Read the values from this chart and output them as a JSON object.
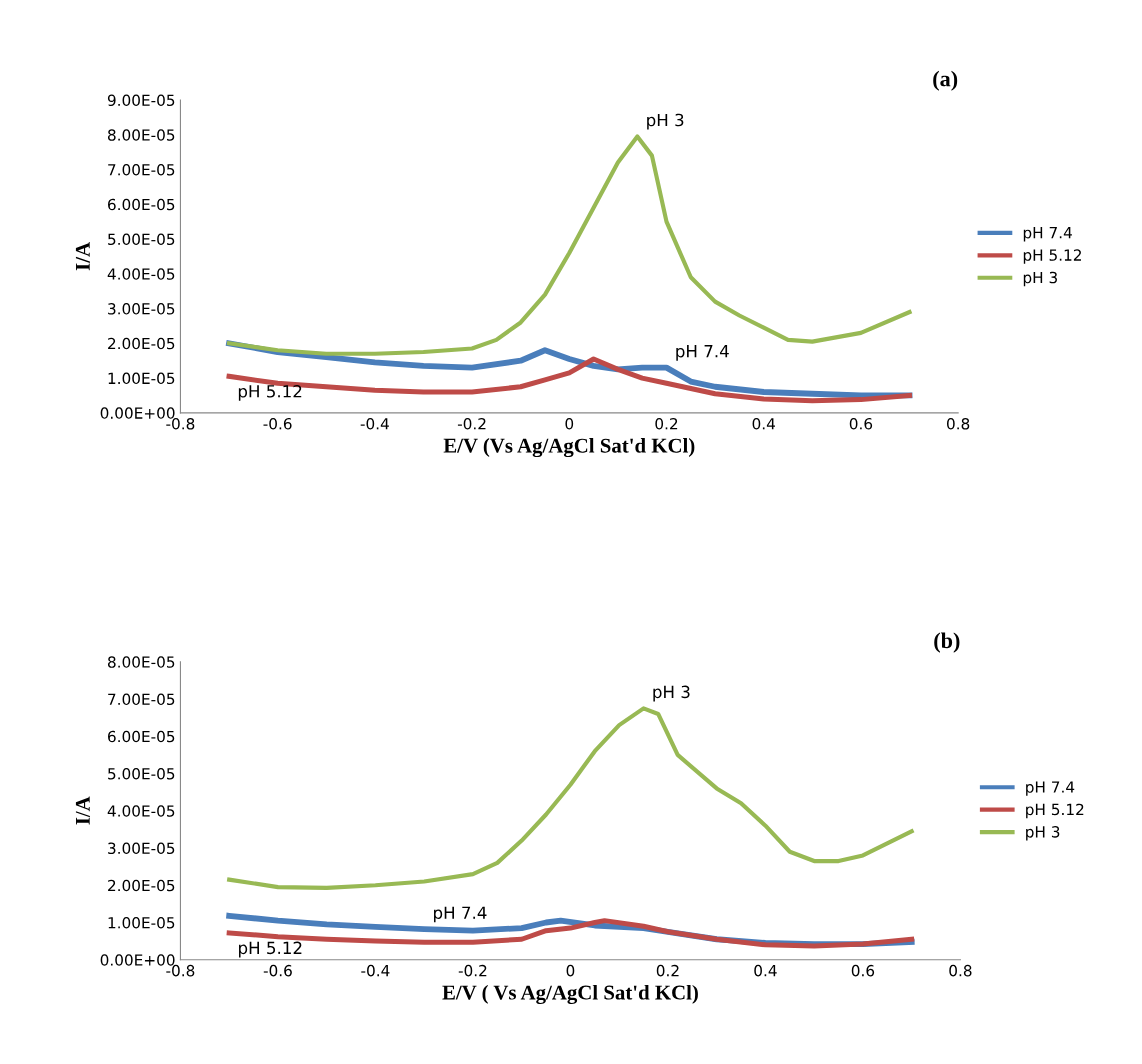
{
  "chart_data": [
    {
      "type": "line",
      "title": "(a)",
      "xlabel": "E/V (Vs Ag/AgCl Sat'd KCl)",
      "ylabel": "I/A",
      "legend": "right",
      "grid": false,
      "marker": "none",
      "line_style": "solid",
      "xlim": [
        -0.8,
        0.8
      ],
      "xticks": [
        -0.8,
        -0.6,
        -0.4,
        -0.2,
        0,
        0.2,
        0.4,
        0.6,
        0.8
      ],
      "ylim": [
        0,
        9e-05
      ],
      "yticks": [
        {
          "value": 0,
          "label": "0.00E+00"
        },
        {
          "value": 1e-05,
          "label": "1.00E-05"
        },
        {
          "value": 2e-05,
          "label": "2.00E-05"
        },
        {
          "value": 3e-05,
          "label": "3.00E-05"
        },
        {
          "value": 4e-05,
          "label": "4.00E-05"
        },
        {
          "value": 5e-05,
          "label": "5.00E-05"
        },
        {
          "value": 6e-05,
          "label": "6.00E-05"
        },
        {
          "value": 7e-05,
          "label": "7.00E-05"
        },
        {
          "value": 8e-05,
          "label": "8.00E-05"
        },
        {
          "value": 9e-05,
          "label": "9.00E-05"
        }
      ],
      "series": [
        {
          "name": "pH 7.4",
          "color": "#4a7ebb",
          "x": [
            -0.7,
            -0.6,
            -0.5,
            -0.4,
            -0.3,
            -0.2,
            -0.1,
            -0.05,
            0,
            0.05,
            0.1,
            0.15,
            0.2,
            0.25,
            0.3,
            0.4,
            0.5,
            0.6,
            0.7
          ],
          "values": [
            2e-05,
            1.75e-05,
            1.6e-05,
            1.45e-05,
            1.35e-05,
            1.3e-05,
            1.5e-05,
            1.8e-05,
            1.55e-05,
            1.35e-05,
            1.25e-05,
            1.3e-05,
            1.3e-05,
            9e-06,
            7.5e-06,
            6e-06,
            5.5e-06,
            5e-06,
            5e-06
          ]
        },
        {
          "name": "pH 5.12",
          "color": "#be4b48",
          "x": [
            -0.7,
            -0.6,
            -0.5,
            -0.4,
            -0.3,
            -0.2,
            -0.1,
            -0.05,
            0,
            0.05,
            0.1,
            0.15,
            0.2,
            0.3,
            0.4,
            0.5,
            0.6,
            0.7
          ],
          "values": [
            1.05e-05,
            8.5e-06,
            7.5e-06,
            6.5e-06,
            6e-06,
            6e-06,
            7.5e-06,
            9.5e-06,
            1.15e-05,
            1.55e-05,
            1.25e-05,
            1e-05,
            8.5e-06,
            5.5e-06,
            4e-06,
            3.5e-06,
            3.8e-06,
            5e-06
          ]
        },
        {
          "name": "pH 3",
          "color": "#98b954",
          "x": [
            -0.7,
            -0.6,
            -0.5,
            -0.4,
            -0.3,
            -0.2,
            -0.15,
            -0.1,
            -0.05,
            0,
            0.05,
            0.1,
            0.14,
            0.17,
            0.2,
            0.25,
            0.3,
            0.35,
            0.4,
            0.45,
            0.5,
            0.6,
            0.7
          ],
          "values": [
            2e-05,
            1.8e-05,
            1.7e-05,
            1.7e-05,
            1.75e-05,
            1.85e-05,
            2.1e-05,
            2.6e-05,
            3.4e-05,
            4.6e-05,
            5.9e-05,
            7.2e-05,
            7.95e-05,
            7.4e-05,
            5.5e-05,
            3.9e-05,
            3.2e-05,
            2.8e-05,
            2.45e-05,
            2.1e-05,
            2.05e-05,
            2.3e-05,
            2.9e-05
          ]
        }
      ],
      "annotations": [
        {
          "text": "pH 3",
          "x": 0.14,
          "y": 7.95e-05
        },
        {
          "text": "pH 7.4",
          "x": 0.2,
          "y": 1.3e-05
        },
        {
          "text": "pH 5.12",
          "x": -0.7,
          "y": 1.05e-05
        }
      ]
    },
    {
      "type": "line",
      "title": "(b)",
      "xlabel": "E/V ( Vs Ag/AgCl Sat'd KCl)",
      "ylabel": "I/A",
      "legend": "right",
      "grid": false,
      "marker": "none",
      "line_style": "solid",
      "xlim": [
        -0.8,
        0.8
      ],
      "xticks": [
        -0.8,
        -0.6,
        -0.4,
        -0.2,
        0,
        0.2,
        0.4,
        0.6,
        0.8
      ],
      "ylim": [
        0,
        8e-05
      ],
      "yticks": [
        {
          "value": 0,
          "label": "0.00E+00"
        },
        {
          "value": 1e-05,
          "label": "1.00E-05"
        },
        {
          "value": 2e-05,
          "label": "2.00E-05"
        },
        {
          "value": 3e-05,
          "label": "3.00E-05"
        },
        {
          "value": 4e-05,
          "label": "4.00E-05"
        },
        {
          "value": 5e-05,
          "label": "5.00E-05"
        },
        {
          "value": 6e-05,
          "label": "6.00E-05"
        },
        {
          "value": 7e-05,
          "label": "7.00E-05"
        },
        {
          "value": 8e-05,
          "label": "8.00E-05"
        }
      ],
      "series": [
        {
          "name": "pH 7.4",
          "color": "#4a7ebb",
          "x": [
            -0.7,
            -0.6,
            -0.5,
            -0.4,
            -0.3,
            -0.2,
            -0.1,
            -0.05,
            -0.02,
            0.05,
            0.15,
            0.2,
            0.3,
            0.4,
            0.5,
            0.6,
            0.7
          ],
          "values": [
            1.18e-05,
            1.05e-05,
            9.5e-06,
            8.8e-06,
            8.2e-06,
            7.8e-06,
            8.5e-06,
            1e-05,
            1.05e-05,
            9.2e-06,
            8.5e-06,
            7.5e-06,
            5.5e-06,
            4.5e-06,
            4.2e-06,
            4.2e-06,
            4.8e-06
          ]
        },
        {
          "name": "pH 5.12",
          "color": "#be4b48",
          "x": [
            -0.7,
            -0.6,
            -0.5,
            -0.4,
            -0.3,
            -0.2,
            -0.1,
            -0.05,
            0,
            0.05,
            0.07,
            0.15,
            0.2,
            0.3,
            0.4,
            0.5,
            0.6,
            0.7
          ],
          "values": [
            7.2e-06,
            6.2e-06,
            5.5e-06,
            5e-06,
            4.7e-06,
            4.7e-06,
            5.5e-06,
            7.8e-06,
            8.5e-06,
            1e-05,
            1.05e-05,
            9e-06,
            7.5e-06,
            5.5e-06,
            4e-06,
            3.7e-06,
            4.2e-06,
            5.5e-06
          ]
        },
        {
          "name": "pH 3",
          "color": "#98b954",
          "x": [
            -0.7,
            -0.6,
            -0.5,
            -0.4,
            -0.3,
            -0.2,
            -0.15,
            -0.1,
            -0.05,
            0,
            0.05,
            0.1,
            0.15,
            0.18,
            0.22,
            0.3,
            0.35,
            0.4,
            0.45,
            0.5,
            0.55,
            0.6,
            0.7
          ],
          "values": [
            2.15e-05,
            1.95e-05,
            1.93e-05,
            2e-05,
            2.1e-05,
            2.3e-05,
            2.6e-05,
            3.2e-05,
            3.9e-05,
            4.7e-05,
            5.6e-05,
            6.3e-05,
            6.75e-05,
            6.6e-05,
            5.5e-05,
            4.6e-05,
            4.2e-05,
            3.6e-05,
            2.9e-05,
            2.65e-05,
            2.65e-05,
            2.8e-05,
            3.45e-05
          ]
        }
      ],
      "annotations": [
        {
          "text": "pH 3",
          "x": 0.15,
          "y": 6.75e-05
        },
        {
          "text": "pH 7.4",
          "x": -0.3,
          "y": 8.2e-06
        },
        {
          "text": "pH 5.12",
          "x": -0.7,
          "y": 7.2e-06
        }
      ]
    }
  ]
}
